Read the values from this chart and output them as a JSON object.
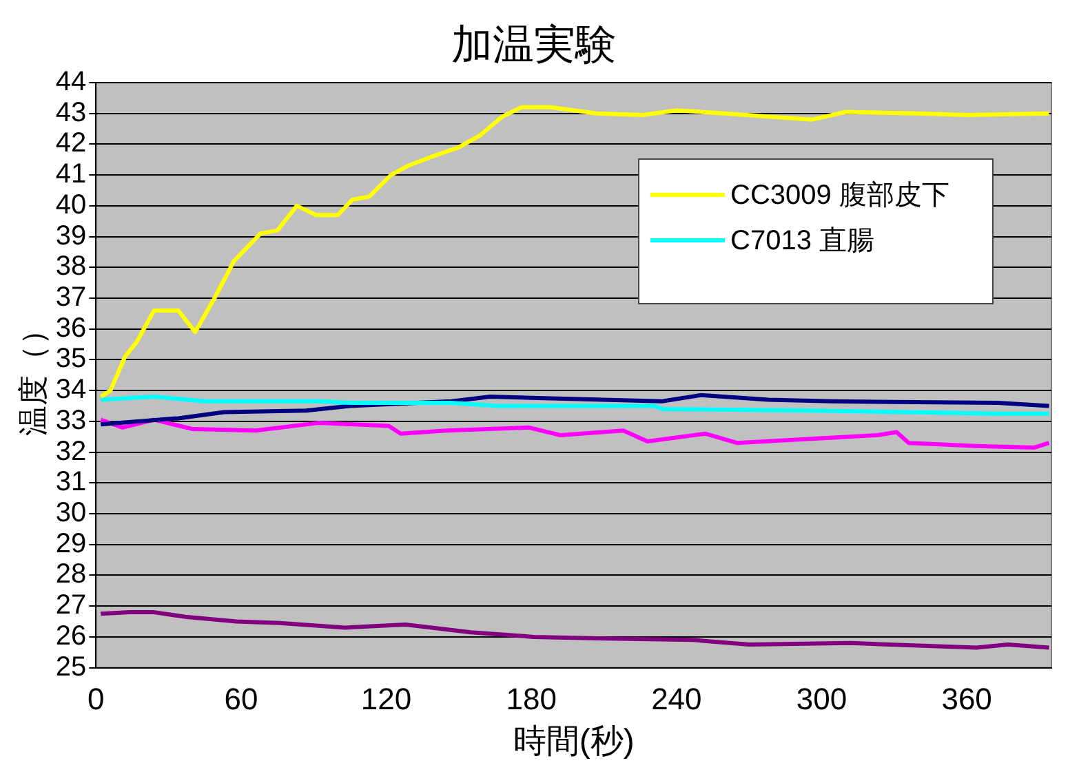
{
  "chart_data": {
    "type": "line",
    "title": "加温実験",
    "xlabel": "時間(秒)",
    "ylabel": "温度（）",
    "xlim": [
      0,
      395
    ],
    "xticks": [
      0,
      60,
      120,
      180,
      240,
      300,
      360
    ],
    "ylim": [
      25,
      44
    ],
    "yticks": [
      25,
      26,
      27,
      28,
      29,
      30,
      31,
      32,
      33,
      34,
      35,
      36,
      37,
      38,
      39,
      40,
      41,
      42,
      43,
      44
    ],
    "grid": "y",
    "legend": "top right",
    "marker": "none",
    "series": [
      {
        "name": "CC3009 腹部皮下",
        "color": "#ffff00",
        "x": [
          2,
          6,
          12,
          17,
          24,
          34,
          41,
          49,
          57,
          68,
          75,
          83,
          91,
          100,
          106,
          113,
          122,
          129,
          139,
          150,
          159,
          168,
          176,
          188,
          207,
          226,
          240,
          260,
          296,
          310,
          340,
          360,
          394
        ],
        "values": [
          33.8,
          34.0,
          35.1,
          35.6,
          36.6,
          36.6,
          35.9,
          37.0,
          38.2,
          39.1,
          39.2,
          40.0,
          39.7,
          39.7,
          40.2,
          40.3,
          41.0,
          41.3,
          41.6,
          41.9,
          42.3,
          42.9,
          43.2,
          43.2,
          43.0,
          42.95,
          43.1,
          43.0,
          42.8,
          43.05,
          43.0,
          42.95,
          43.0
        ]
      },
      {
        "name": "C7013 直腸",
        "color": "#00ffff",
        "x": [
          2,
          24,
          45,
          92,
          105,
          147,
          166,
          231,
          234,
          296,
          373,
          394
        ],
        "values": [
          33.7,
          33.8,
          33.65,
          33.65,
          33.6,
          33.6,
          33.5,
          33.5,
          33.4,
          33.35,
          33.25,
          33.25
        ]
      },
      {
        "color": "#000080",
        "x": [
          2,
          34,
          53,
          87,
          105,
          147,
          163,
          234,
          250,
          278,
          304,
          373,
          394
        ],
        "values": [
          32.9,
          33.1,
          33.3,
          33.35,
          33.5,
          33.65,
          33.8,
          33.65,
          33.85,
          33.7,
          33.65,
          33.6,
          33.5
        ]
      },
      {
        "color": "#ff00ff",
        "x": [
          2,
          11,
          24,
          40,
          66,
          92,
          121,
          126,
          145,
          179,
          192,
          218,
          228,
          252,
          265,
          323,
          331,
          336,
          364,
          388,
          394
        ],
        "values": [
          33.05,
          32.8,
          33.05,
          32.75,
          32.7,
          32.95,
          32.85,
          32.6,
          32.7,
          32.8,
          32.55,
          32.7,
          32.35,
          32.6,
          32.3,
          32.55,
          32.65,
          32.3,
          32.2,
          32.15,
          32.3
        ]
      },
      {
        "color": "#800080",
        "x": [
          2,
          14,
          24,
          37,
          58,
          76,
          103,
          128,
          155,
          181,
          207,
          247,
          270,
          312,
          364,
          377,
          394
        ],
        "values": [
          26.75,
          26.8,
          26.8,
          26.65,
          26.5,
          26.45,
          26.3,
          26.4,
          26.15,
          26.0,
          25.95,
          25.9,
          25.75,
          25.8,
          25.65,
          25.75,
          25.65
        ]
      }
    ]
  }
}
